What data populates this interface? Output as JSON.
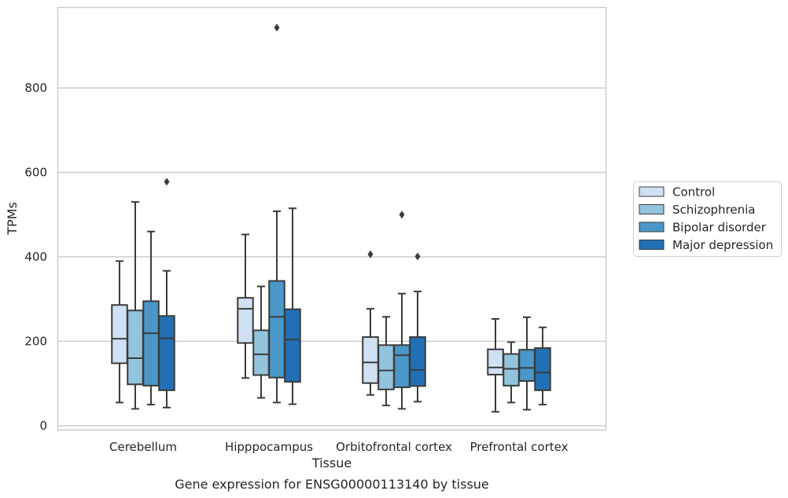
{
  "chart_data": {
    "type": "box",
    "xlabel": "Tissue",
    "ylabel": "TPMs",
    "caption": "Gene expression for ENSG00000113140 by tissue",
    "ylim": [
      -10,
      990
    ],
    "yticks": [
      0,
      200,
      400,
      600,
      800
    ],
    "grid": true,
    "legend_position": "right",
    "categories": [
      "Cerebellum",
      "Hipppocampus",
      "Orbitofrontal cortex",
      "Prefrontal cortex"
    ],
    "series": [
      {
        "name": "Control",
        "color": "#cfe1f2",
        "boxes": [
          {
            "whislo": 55,
            "q1": 148,
            "med": 206,
            "q3": 286,
            "whishi": 390,
            "fliers": []
          },
          {
            "whislo": 113,
            "q1": 196,
            "med": 277,
            "q3": 303,
            "whishi": 453,
            "fliers": []
          },
          {
            "whislo": 73,
            "q1": 101,
            "med": 150,
            "q3": 210,
            "whishi": 277,
            "fliers": [
              406
            ]
          },
          {
            "whislo": 33,
            "q1": 121,
            "med": 138,
            "q3": 181,
            "whishi": 253,
            "fliers": []
          }
        ]
      },
      {
        "name": "Schizophrenia",
        "color": "#93c4de",
        "boxes": [
          {
            "whislo": 40,
            "q1": 98,
            "med": 160,
            "q3": 273,
            "whishi": 530,
            "fliers": []
          },
          {
            "whislo": 66,
            "q1": 120,
            "med": 169,
            "q3": 226,
            "whishi": 330,
            "fliers": []
          },
          {
            "whislo": 48,
            "q1": 86,
            "med": 131,
            "q3": 191,
            "whishi": 258,
            "fliers": []
          },
          {
            "whislo": 55,
            "q1": 95,
            "med": 135,
            "q3": 170,
            "whishi": 198,
            "fliers": []
          }
        ]
      },
      {
        "name": "Bipolar disorder",
        "color": "#4a98c9",
        "boxes": [
          {
            "whislo": 50,
            "q1": 95,
            "med": 219,
            "q3": 295,
            "whishi": 460,
            "fliers": []
          },
          {
            "whislo": 55,
            "q1": 114,
            "med": 258,
            "q3": 343,
            "whishi": 508,
            "fliers": [
              943
            ]
          },
          {
            "whislo": 40,
            "q1": 91,
            "med": 167,
            "q3": 191,
            "whishi": 313,
            "fliers": [
              500
            ]
          },
          {
            "whislo": 38,
            "q1": 106,
            "med": 137,
            "q3": 180,
            "whishi": 257,
            "fliers": []
          }
        ]
      },
      {
        "name": "Major depression",
        "color": "#2170b5",
        "boxes": [
          {
            "whislo": 43,
            "q1": 84,
            "med": 207,
            "q3": 260,
            "whishi": 367,
            "fliers": [
              578
            ]
          },
          {
            "whislo": 51,
            "q1": 104,
            "med": 204,
            "q3": 276,
            "whishi": 515,
            "fliers": []
          },
          {
            "whislo": 57,
            "q1": 94,
            "med": 132,
            "q3": 210,
            "whishi": 318,
            "fliers": [
              401
            ]
          },
          {
            "whislo": 50,
            "q1": 84,
            "med": 126,
            "q3": 184,
            "whishi": 233,
            "fliers": []
          }
        ]
      }
    ]
  }
}
